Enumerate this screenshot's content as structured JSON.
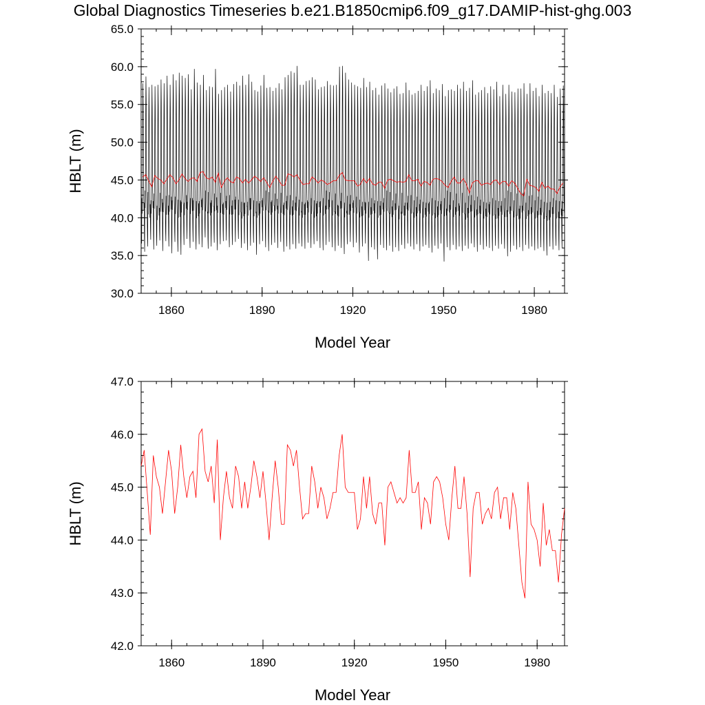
{
  "title": "Global Diagnostics Timeseries b.e21.B1850cmip6.f09_g17.DAMIP-hist-ghg.003",
  "colors": {
    "monthly": "#000000",
    "annual": "#ff0000",
    "axis": "#000000",
    "background": "#ffffff"
  },
  "chart_data": [
    {
      "type": "line",
      "xlabel": "Model Year",
      "ylabel": "HBLT (m)",
      "xlim": [
        1850,
        1990
      ],
      "ylim": [
        30.0,
        65.0
      ],
      "xticks": [
        1860,
        1890,
        1920,
        1950,
        1980
      ],
      "xtick_labels": [
        "1860",
        "1890",
        "1920",
        "1950",
        "1980"
      ],
      "yticks": [
        30.0,
        35.0,
        40.0,
        45.0,
        50.0,
        55.0,
        60.0,
        65.0
      ],
      "ytick_labels": [
        "30.0",
        "35.0",
        "40.0",
        "45.0",
        "50.0",
        "55.0",
        "60.0",
        "65.0"
      ],
      "grid": false,
      "series": [
        {
          "color": "#000000",
          "style": "monthly seasonal cycle",
          "peak": [
            57.8,
            58.7,
            57.3,
            57.6,
            57.4,
            57.6,
            58.3,
            57.8,
            58.8,
            57.6,
            59.0,
            58.2,
            59.2,
            58.8,
            58.5,
            59.0,
            57.0,
            59.7,
            57.9,
            57.6,
            58.9,
            56.9,
            57.4,
            57.3,
            59.7,
            56.4,
            56.9,
            57.3,
            57.6,
            56.7,
            57.7,
            58.0,
            57.5,
            58.8,
            57.6,
            59.0,
            58.0,
            56.9,
            56.7,
            57.5,
            58.9,
            57.2,
            57.3,
            56.8,
            57.2,
            57.8,
            57.0,
            58.6,
            58.9,
            59.4,
            59.2,
            60.1,
            57.6,
            57.6,
            58.1,
            58.2,
            58.6,
            58.3,
            57.0,
            57.3,
            57.4,
            58.1,
            57.6,
            57.5,
            57.6,
            60.0,
            60.1,
            59.2,
            58.3,
            57.9,
            57.6,
            57.4,
            57.2,
            58.5,
            57.3,
            58.0,
            56.9,
            57.2,
            56.3,
            57.5,
            57.8,
            57.1,
            56.6,
            57.1,
            57.4,
            56.4,
            56.5,
            57.9,
            56.9,
            56.3,
            56.5,
            56.8,
            57.6,
            56.8,
            57.4,
            58.2,
            56.5,
            57.1,
            56.9,
            57.7,
            56.1,
            56.9,
            57.0,
            56.8,
            57.6,
            57.1,
            58.0,
            56.8,
            57.2,
            58.2,
            56.3,
            56.6,
            56.9,
            57.3,
            56.5,
            57.4,
            57.0,
            58.0,
            56.1,
            57.6,
            56.4,
            57.6,
            56.7,
            56.6,
            57.1,
            57.1,
            57.8,
            56.4,
            57.8,
            56.8,
            57.2,
            56.1,
            57.6,
            56.5,
            56.8,
            56.5,
            57.6,
            56.0,
            57.1,
            57.5
          ],
          "trough": [
            36.6,
            35.5,
            36.2,
            37.1,
            35.8,
            36.3,
            37.0,
            35.6,
            36.9,
            36.2,
            35.3,
            36.8,
            35.5,
            35.1,
            36.4,
            37.2,
            36.0,
            36.8,
            35.8,
            36.5,
            36.1,
            37.4,
            35.9,
            36.2,
            36.7,
            35.7,
            36.5,
            36.9,
            37.0,
            36.1,
            36.4,
            36.8,
            37.2,
            36.0,
            36.6,
            35.7,
            36.3,
            36.7,
            35.1,
            36.5,
            36.9,
            36.1,
            35.6,
            36.4,
            36.7,
            36.0,
            36.8,
            35.5,
            36.2,
            35.8,
            36.5,
            35.9,
            36.6,
            36.2,
            35.9,
            36.7,
            36.0,
            36.5,
            36.9,
            36.0,
            35.7,
            36.4,
            36.8,
            36.1,
            35.6,
            36.3,
            36.0,
            35.2,
            36.5,
            36.8,
            36.1,
            36.7,
            35.4,
            36.2,
            36.6,
            34.3,
            36.1,
            35.8,
            34.5,
            36.4,
            36.0,
            35.7,
            36.3,
            35.5,
            36.1,
            35.6,
            36.4,
            35.9,
            36.6,
            36.2,
            35.8,
            36.5,
            35.6,
            36.2,
            36.4,
            36.0,
            35.4,
            36.3,
            35.9,
            36.6,
            34.2,
            36.1,
            35.7,
            36.4,
            35.8,
            36.2,
            35.6,
            36.3,
            35.9,
            36.6,
            36.1,
            35.5,
            36.4,
            35.8,
            36.2,
            36.0,
            35.6,
            36.3,
            35.9,
            36.5,
            35.9,
            34.9,
            35.5,
            36.3,
            35.8,
            36.1,
            35.6,
            36.4,
            35.9,
            36.2,
            35.7,
            35.9,
            36.1,
            35.6,
            35.0,
            36.2,
            35.8,
            36.3,
            35.7,
            36.0
          ],
          "mid": [
            41.5,
            42.0,
            40.5,
            41.8,
            42.2,
            40.8,
            41.3,
            42.5,
            40.9,
            41.6,
            42.8,
            41.2,
            40.6,
            42.3,
            41.7,
            43.0,
            41.4,
            42.6,
            40.7,
            41.9,
            42.4,
            41.1,
            40.8,
            42.0,
            41.5,
            42.7,
            41.0,
            41.8,
            42.2,
            40.9,
            41.6,
            42.4,
            41.3,
            40.7,
            42.0,
            41.5,
            42.6,
            41.1,
            40.8,
            41.9,
            42.3,
            41.4,
            40.9,
            42.1,
            41.6,
            42.5,
            41.0,
            41.7,
            42.2,
            40.8,
            41.5,
            42.0,
            41.2,
            40.9,
            41.8,
            42.3,
            41.4,
            40.7,
            41.9,
            42.1,
            41.0,
            41.6,
            42.4,
            41.3,
            40.8,
            41.7,
            42.2,
            41.1,
            40.9,
            41.8,
            42.0,
            41.3,
            40.7,
            41.5,
            42.1,
            40.9,
            41.4,
            41.9,
            40.8,
            41.6,
            42.0,
            41.2,
            40.6,
            41.5,
            41.9,
            41.0,
            40.8,
            41.6,
            42.0,
            41.1,
            40.7,
            41.4,
            41.8,
            40.9,
            41.3,
            41.9,
            41.0,
            40.6,
            41.5,
            41.8,
            40.8,
            41.2,
            41.7,
            40.9,
            41.4,
            41.9,
            41.0,
            40.5,
            41.3,
            41.7,
            40.8,
            41.1,
            41.6,
            40.7,
            41.2,
            41.8,
            40.9,
            40.4,
            41.3,
            41.6,
            40.6,
            41.0,
            41.5,
            40.8,
            40.3,
            41.2,
            41.6,
            40.7,
            41.0,
            41.4,
            40.5,
            40.9,
            41.3,
            40.6,
            40.2,
            41.0,
            41.4,
            40.5,
            40.8,
            41.2
          ]
        },
        {
          "color": "#ff0000",
          "style": "annual mean",
          "values": [
            45.4,
            45.7,
            44.9,
            44.1,
            45.6,
            45.2,
            45.0,
            44.5,
            45.1,
            45.7,
            45.3,
            44.5,
            45.0,
            45.8,
            45.2,
            44.8,
            45.2,
            45.3,
            44.8,
            46.0,
            46.1,
            45.3,
            45.1,
            45.4,
            44.7,
            45.9,
            44.0,
            44.8,
            45.3,
            44.8,
            44.6,
            45.4,
            45.2,
            44.6,
            45.1,
            44.6,
            45.0,
            45.5,
            45.2,
            44.8,
            45.3,
            44.7,
            44.0,
            44.8,
            45.5,
            45.0,
            44.3,
            44.3,
            45.8,
            45.7,
            45.4,
            45.7,
            45.0,
            44.4,
            44.5,
            44.5,
            45.4,
            45.1,
            44.6,
            45.0,
            44.8,
            44.4,
            44.6,
            44.9,
            44.9,
            45.6,
            46.0,
            45.0,
            44.9,
            44.9,
            44.9,
            44.2,
            44.4,
            45.2,
            44.6,
            45.2,
            44.5,
            44.3,
            44.7,
            44.7,
            43.9,
            45.0,
            45.1,
            44.9,
            44.7,
            44.8,
            44.7,
            44.8,
            45.7,
            44.9,
            44.9,
            45.1,
            44.2,
            44.8,
            44.7,
            44.3,
            45.1,
            45.2,
            45.1,
            44.8,
            44.3,
            44.0,
            44.8,
            45.4,
            44.6,
            44.6,
            45.2,
            44.5,
            43.3,
            44.6,
            44.9,
            44.9,
            44.3,
            44.5,
            44.6,
            44.4,
            44.9,
            45.0,
            44.4,
            44.8,
            44.8,
            44.2,
            44.9,
            44.6,
            43.9,
            43.2,
            42.9,
            45.1,
            44.3,
            44.2,
            44.0,
            43.5,
            44.7,
            43.9,
            44.2,
            43.8,
            43.8,
            43.2,
            44.1,
            44.6
          ]
        }
      ]
    },
    {
      "type": "line",
      "xlabel": "Model Year",
      "ylabel": "HBLT (m)",
      "xlim": [
        1850,
        1989
      ],
      "ylim": [
        42.0,
        47.0
      ],
      "xticks": [
        1860,
        1890,
        1920,
        1950,
        1980
      ],
      "xtick_labels": [
        "1860",
        "1890",
        "1920",
        "1950",
        "1980"
      ],
      "yticks": [
        42.0,
        43.0,
        44.0,
        45.0,
        46.0,
        47.0
      ],
      "ytick_labels": [
        "42.0",
        "43.0",
        "44.0",
        "45.0",
        "46.0",
        "47.0"
      ],
      "grid": false,
      "series": [
        {
          "color": "#ff0000",
          "style": "annual mean",
          "same_as": "chart_data.0.series.1"
        }
      ]
    }
  ]
}
